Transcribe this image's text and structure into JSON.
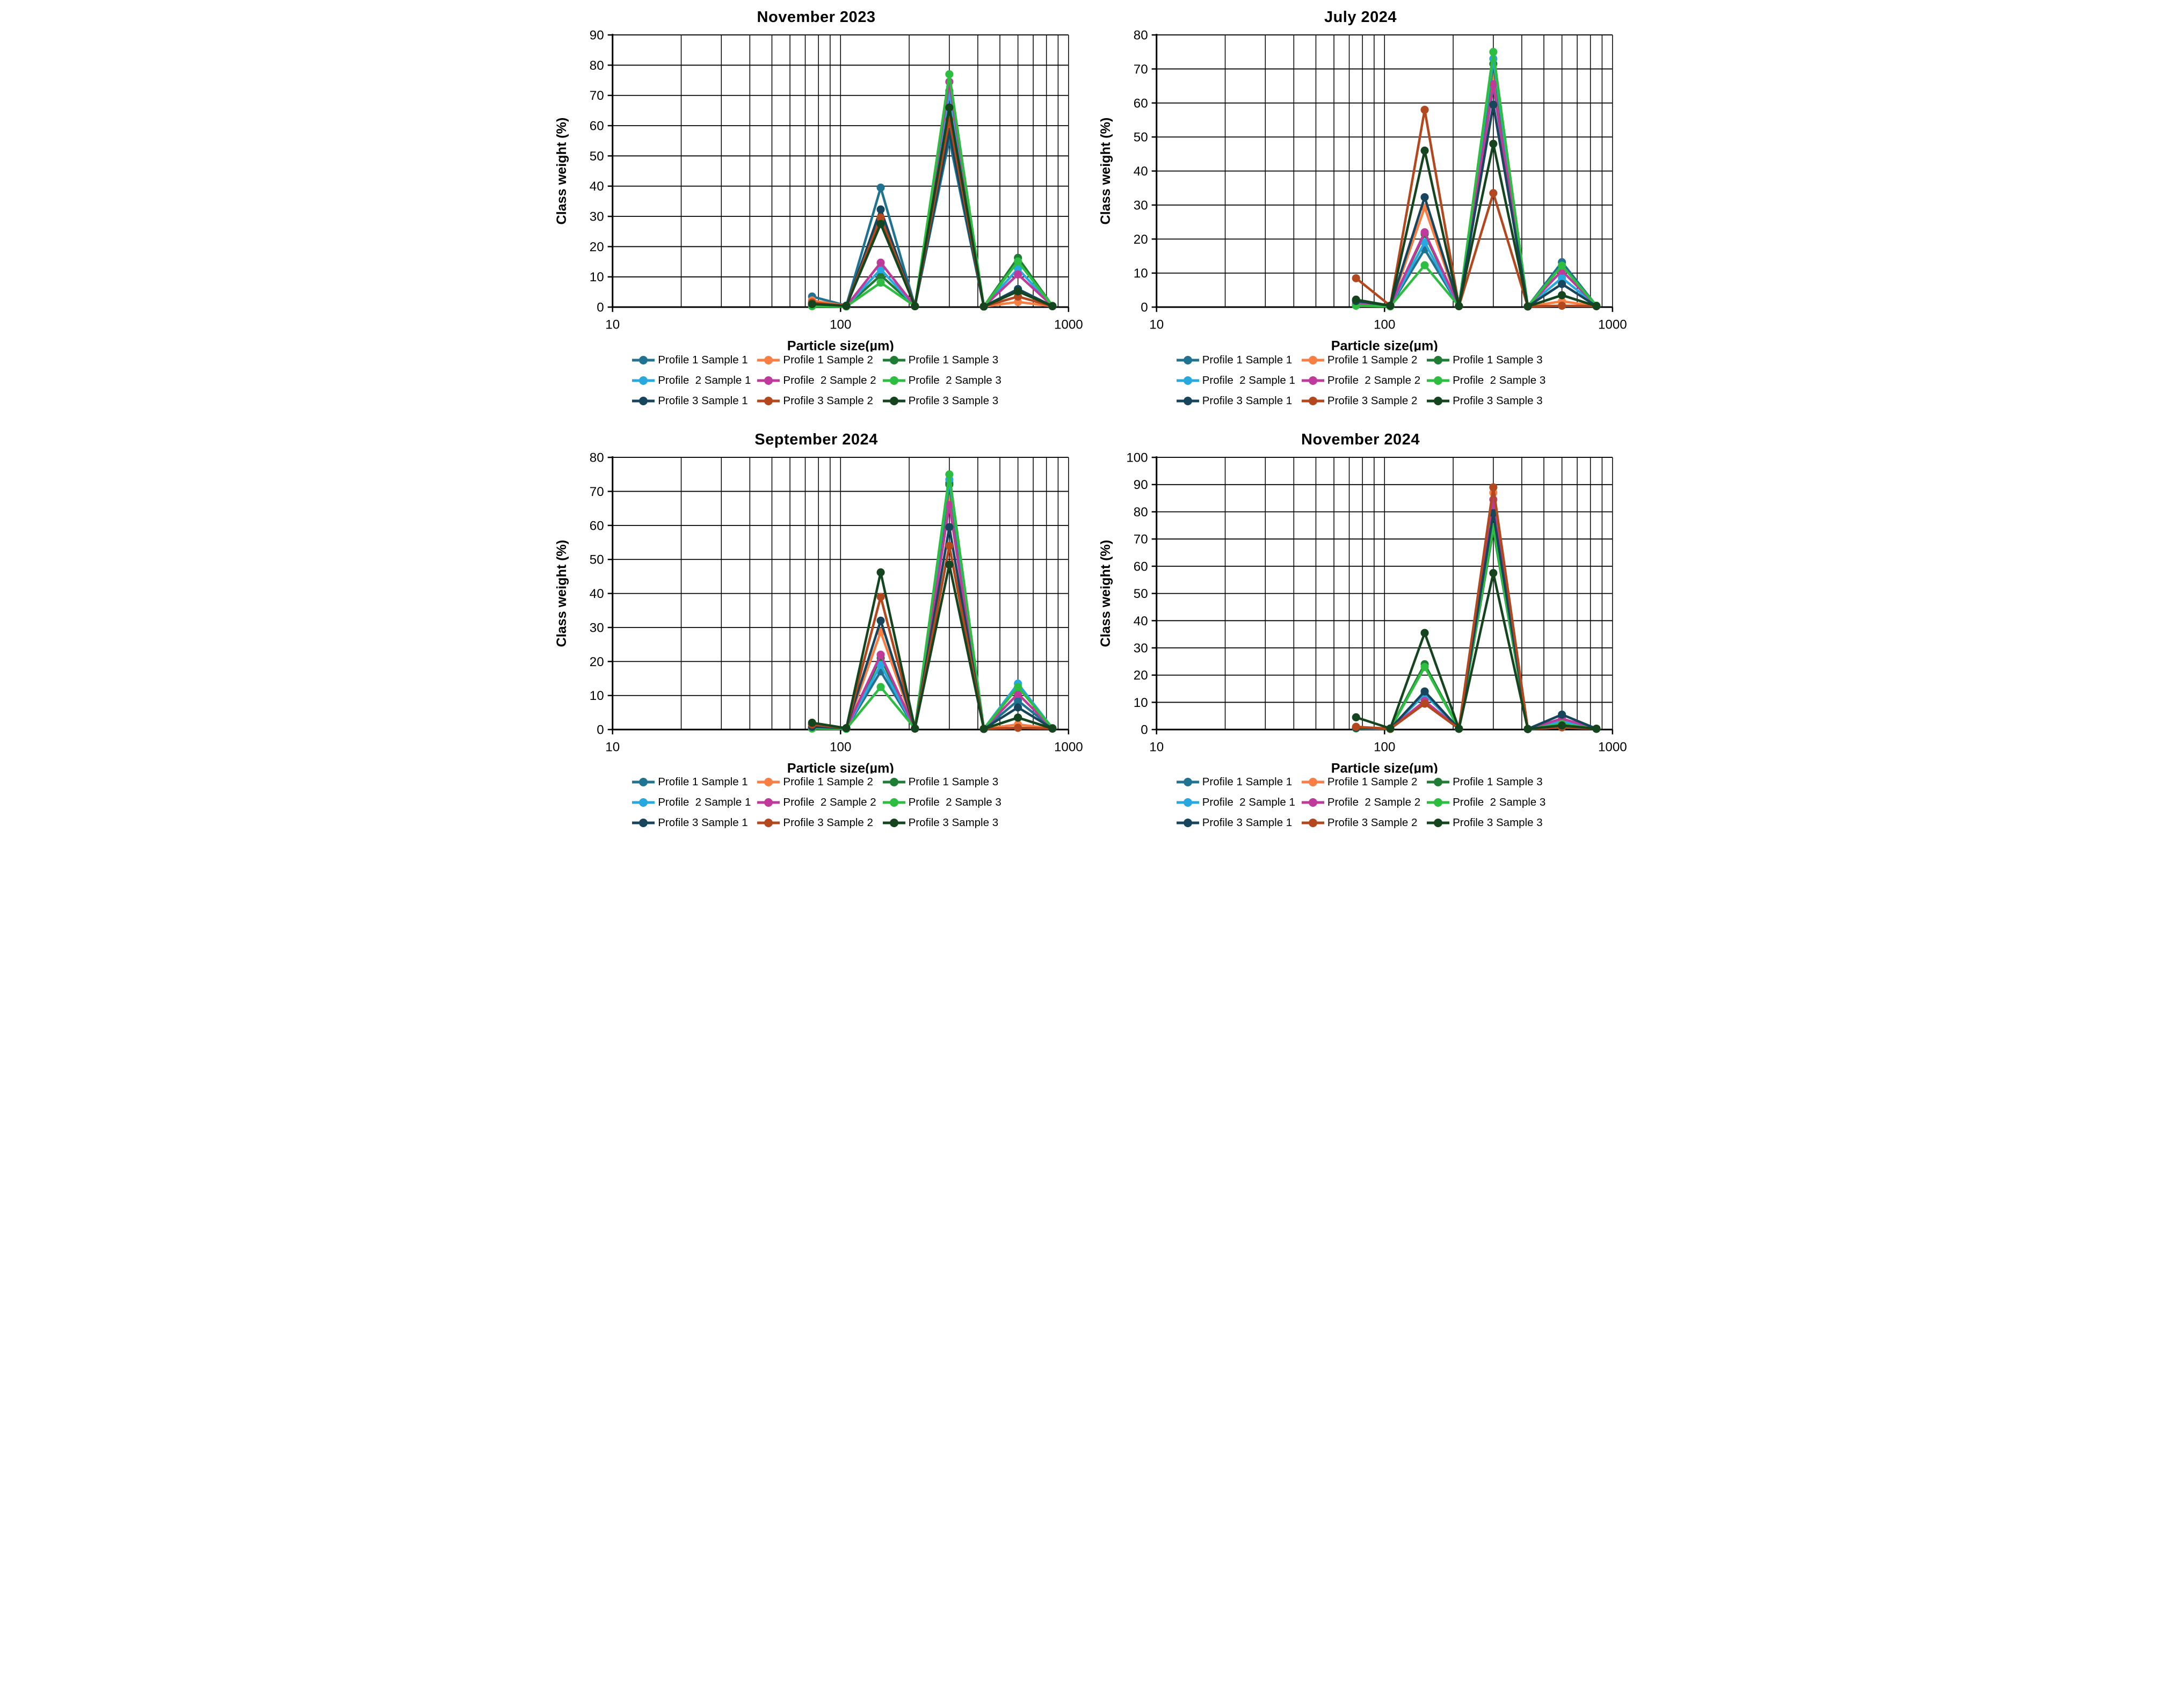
{
  "page": {
    "background": "#ffffff"
  },
  "chart_data": [
    {
      "type": "line",
      "title": "November 2023",
      "xlabel": "Particle size(µm)",
      "ylabel": "Class weight (%)",
      "xscale": "log",
      "xlim": [
        10,
        1000
      ],
      "ylim": [
        0,
        90
      ],
      "ytick_step": 10,
      "yticks": [
        0,
        10,
        20,
        30,
        40,
        50,
        60,
        70,
        80,
        90
      ],
      "xticks": [
        10,
        100,
        1000
      ],
      "grid": true,
      "legend_position": "bottom",
      "x": [
        75,
        106,
        150,
        212,
        300,
        425,
        600,
        850
      ],
      "series": [
        {
          "name": "Profile 1 Sample 1",
          "color": "#1F7391",
          "values": [
            3.5,
            0.5,
            39.5,
            0.3,
            55.5,
            0.2,
            6.0,
            0.3
          ]
        },
        {
          "name": "Profile 1 Sample 2",
          "color": "#F97E43",
          "values": [
            2.2,
            0.4,
            29.3,
            0.3,
            61.5,
            0.2,
            1.7,
            0.3
          ]
        },
        {
          "name": "Profile 1 Sample 3",
          "color": "#1E7C34",
          "values": [
            0.8,
            0.3,
            10.5,
            0.3,
            71.5,
            0.2,
            16.3,
            0.4
          ]
        },
        {
          "name": "Profile  2 Sample 1",
          "color": "#27A8DE",
          "values": [
            0.6,
            0.3,
            12.5,
            0.3,
            71.0,
            0.2,
            12.7,
            0.4
          ]
        },
        {
          "name": "Profile  2 Sample 2",
          "color": "#BE3B9B",
          "values": [
            0.7,
            0.3,
            14.7,
            0.3,
            74.5,
            0.2,
            10.8,
            0.4
          ]
        },
        {
          "name": "Profile  2 Sample 3",
          "color": "#2DBE41",
          "values": [
            0.3,
            0.2,
            8.1,
            0.3,
            77.0,
            0.2,
            15.1,
            0.4
          ]
        },
        {
          "name": "Profile 3 Sample 1",
          "color": "#17455C",
          "values": [
            1.2,
            0.4,
            32.3,
            0.3,
            58.0,
            0.2,
            5.9,
            0.3
          ]
        },
        {
          "name": "Profile 3 Sample 2",
          "color": "#B3471D",
          "values": [
            1.5,
            0.4,
            29.6,
            0.3,
            62.0,
            0.2,
            3.5,
            0.3
          ]
        },
        {
          "name": "Profile 3 Sample 3",
          "color": "#14451F",
          "values": [
            1.0,
            0.4,
            27.5,
            0.3,
            66.0,
            0.2,
            5.2,
            0.3
          ]
        }
      ]
    },
    {
      "type": "line",
      "title": "July 2024",
      "xlabel": "Particle size(µm)",
      "ylabel": "Class weight (%)",
      "xscale": "log",
      "xlim": [
        10,
        1000
      ],
      "ylim": [
        0,
        80
      ],
      "ytick_step": 10,
      "yticks": [
        0,
        10,
        20,
        30,
        40,
        50,
        60,
        70,
        80
      ],
      "xticks": [
        10,
        100,
        1000
      ],
      "grid": true,
      "legend_position": "bottom",
      "x": [
        75,
        106,
        150,
        212,
        300,
        425,
        600,
        850
      ],
      "series": [
        {
          "name": "Profile 1 Sample 1",
          "color": "#1F7391",
          "values": [
            1.0,
            0.3,
            17.0,
            0.3,
            65.0,
            0.2,
            13.2,
            0.4
          ]
        },
        {
          "name": "Profile 1 Sample 2",
          "color": "#F97E43",
          "values": [
            0.8,
            0.3,
            29.3,
            0.3,
            68.0,
            0.2,
            1.7,
            0.3
          ]
        },
        {
          "name": "Profile 1 Sample 3",
          "color": "#1E7C34",
          "values": [
            2.0,
            0.3,
            21.5,
            0.3,
            71.5,
            0.2,
            3.5,
            0.3
          ]
        },
        {
          "name": "Profile  2 Sample 1",
          "color": "#27A8DE",
          "values": [
            0.7,
            0.3,
            19.0,
            0.3,
            73.0,
            0.2,
            8.6,
            0.4
          ]
        },
        {
          "name": "Profile  2 Sample 2",
          "color": "#BE3B9B",
          "values": [
            0.7,
            0.3,
            22.0,
            0.3,
            65.5,
            0.2,
            10.7,
            0.4
          ]
        },
        {
          "name": "Profile  2 Sample 3",
          "color": "#2DBE41",
          "values": [
            0.4,
            0.2,
            12.3,
            0.3,
            75.0,
            0.2,
            12.2,
            0.4
          ]
        },
        {
          "name": "Profile 3 Sample 1",
          "color": "#17455C",
          "values": [
            1.8,
            0.4,
            32.3,
            0.3,
            59.5,
            0.2,
            6.8,
            0.3
          ]
        },
        {
          "name": "Profile 3 Sample 2",
          "color": "#B3471D",
          "values": [
            8.5,
            0.4,
            58.0,
            0.3,
            33.5,
            0.2,
            0.4,
            0.3
          ]
        },
        {
          "name": "Profile 3 Sample 3",
          "color": "#14451F",
          "values": [
            2.2,
            0.4,
            46.0,
            0.3,
            48.0,
            0.2,
            3.5,
            0.3
          ]
        }
      ]
    },
    {
      "type": "line",
      "title": "September 2024",
      "xlabel": "Particle size(µm)",
      "ylabel": "Class weight (%)",
      "xscale": "log",
      "xlim": [
        10,
        1000
      ],
      "ylim": [
        0,
        80
      ],
      "ytick_step": 10,
      "yticks": [
        0,
        10,
        20,
        30,
        40,
        50,
        60,
        70,
        80
      ],
      "xticks": [
        10,
        100,
        1000
      ],
      "grid": true,
      "legend_position": "bottom",
      "x": [
        75,
        106,
        150,
        212,
        300,
        425,
        600,
        850
      ],
      "series": [
        {
          "name": "Profile 1 Sample 1",
          "color": "#1F7391",
          "values": [
            0.5,
            0.3,
            17.1,
            0.3,
            72.5,
            0.2,
            8.5,
            0.4
          ]
        },
        {
          "name": "Profile 1 Sample 2",
          "color": "#F97E43",
          "values": [
            0.6,
            0.3,
            28.7,
            0.3,
            68.0,
            0.2,
            1.5,
            0.3
          ]
        },
        {
          "name": "Profile 1 Sample 3",
          "color": "#1E7C34",
          "values": [
            1.5,
            0.3,
            21.0,
            0.3,
            72.0,
            0.2,
            3.5,
            0.3
          ]
        },
        {
          "name": "Profile  2 Sample 1",
          "color": "#27A8DE",
          "values": [
            0.5,
            0.3,
            19.0,
            0.3,
            73.5,
            0.2,
            13.5,
            0.4
          ]
        },
        {
          "name": "Profile  2 Sample 2",
          "color": "#BE3B9B",
          "values": [
            0.5,
            0.3,
            22.0,
            0.3,
            66.0,
            0.2,
            10.5,
            0.4
          ]
        },
        {
          "name": "Profile  2 Sample 3",
          "color": "#2DBE41",
          "values": [
            0.3,
            0.2,
            12.5,
            0.3,
            75.0,
            0.2,
            12.5,
            0.4
          ]
        },
        {
          "name": "Profile 3 Sample 1",
          "color": "#17455C",
          "values": [
            0.8,
            0.4,
            32.0,
            0.3,
            59.5,
            0.2,
            6.5,
            0.3
          ]
        },
        {
          "name": "Profile 3 Sample 2",
          "color": "#B3471D",
          "values": [
            1.5,
            0.4,
            39.0,
            0.3,
            54.0,
            0.2,
            0.5,
            0.3
          ]
        },
        {
          "name": "Profile 3 Sample 3",
          "color": "#14451F",
          "values": [
            2.0,
            0.4,
            46.2,
            0.3,
            48.5,
            0.2,
            3.5,
            0.3
          ]
        }
      ]
    },
    {
      "type": "line",
      "title": "November 2024",
      "xlabel": "Particle size(µm)",
      "ylabel": "Class weight (%)",
      "xscale": "log",
      "xlim": [
        10,
        1000
      ],
      "ylim": [
        0,
        100
      ],
      "ytick_step": 10,
      "yticks": [
        0,
        10,
        20,
        30,
        40,
        50,
        60,
        70,
        80,
        90,
        100
      ],
      "xticks": [
        10,
        100,
        1000
      ],
      "grid": true,
      "legend_position": "bottom",
      "x": [
        75,
        106,
        150,
        212,
        300,
        425,
        600,
        850
      ],
      "series": [
        {
          "name": "Profile 1 Sample 1",
          "color": "#1F7391",
          "values": [
            0.5,
            0.3,
            13.0,
            0.3,
            81.0,
            0.2,
            3.0,
            0.3
          ]
        },
        {
          "name": "Profile 1 Sample 2",
          "color": "#F97E43",
          "values": [
            0.8,
            0.3,
            10.0,
            0.3,
            87.0,
            0.2,
            1.0,
            0.3
          ]
        },
        {
          "name": "Profile 1 Sample 3",
          "color": "#1E7C34",
          "values": [
            0.5,
            0.3,
            24.0,
            0.3,
            73.5,
            0.2,
            1.5,
            0.3
          ]
        },
        {
          "name": "Profile  2 Sample 1",
          "color": "#27A8DE",
          "values": [
            0.5,
            0.3,
            13.0,
            0.3,
            81.5,
            0.2,
            3.0,
            0.3
          ]
        },
        {
          "name": "Profile  2 Sample 2",
          "color": "#BE3B9B",
          "values": [
            0.5,
            0.3,
            10.5,
            0.3,
            84.5,
            0.2,
            4.0,
            0.3
          ]
        },
        {
          "name": "Profile  2 Sample 3",
          "color": "#2DBE41",
          "values": [
            0.4,
            0.2,
            23.0,
            0.3,
            74.5,
            0.2,
            2.0,
            0.3
          ]
        },
        {
          "name": "Profile 3 Sample 1",
          "color": "#17455C",
          "values": [
            0.6,
            0.3,
            14.0,
            0.3,
            79.5,
            0.2,
            5.5,
            0.3
          ]
        },
        {
          "name": "Profile 3 Sample 2",
          "color": "#B3471D",
          "values": [
            1.0,
            0.3,
            9.5,
            0.3,
            89.0,
            0.2,
            0.8,
            0.3
          ]
        },
        {
          "name": "Profile 3 Sample 3",
          "color": "#14451F",
          "values": [
            4.5,
            0.4,
            35.5,
            0.3,
            57.5,
            0.2,
            1.5,
            0.3
          ]
        }
      ]
    }
  ]
}
